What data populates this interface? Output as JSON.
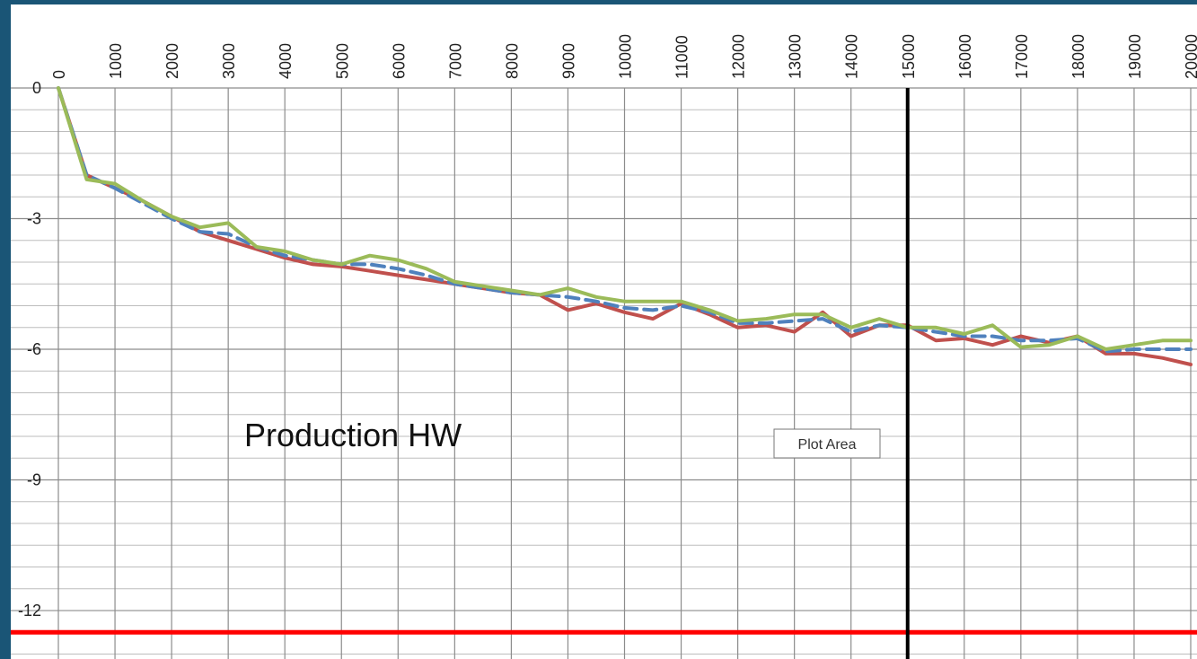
{
  "chart_data": {
    "type": "line",
    "x": [
      0,
      500,
      1000,
      1500,
      2000,
      2500,
      3000,
      3500,
      4000,
      4500,
      5000,
      5500,
      6000,
      6500,
      7000,
      7500,
      8000,
      8500,
      9000,
      9500,
      10000,
      10500,
      11000,
      11500,
      12000,
      12500,
      13000,
      13500,
      14000,
      14500,
      15000,
      15500,
      16000,
      16500,
      17000,
      17500,
      18000,
      18500,
      19000,
      19500,
      20000
    ],
    "series": [
      {
        "color": "#c0504d",
        "dash": false,
        "values": [
          0,
          -2.0,
          -2.3,
          -2.6,
          -2.95,
          -3.3,
          -3.5,
          -3.7,
          -3.9,
          -4.05,
          -4.1,
          -4.2,
          -4.3,
          -4.4,
          -4.5,
          -4.6,
          -4.7,
          -4.75,
          -5.1,
          -4.95,
          -5.15,
          -5.3,
          -4.95,
          -5.2,
          -5.5,
          -5.45,
          -5.6,
          -5.15,
          -5.7,
          -5.45,
          -5.45,
          -5.8,
          -5.75,
          -5.9,
          -5.7,
          -5.85,
          -5.7,
          -6.1,
          -6.1,
          -6.2,
          -6.35
        ]
      },
      {
        "color": "#4f81bd",
        "dash": true,
        "values": [
          0,
          -2.0,
          -2.3,
          -2.65,
          -3.0,
          -3.3,
          -3.35,
          -3.65,
          -3.85,
          -3.95,
          -4.05,
          -4.05,
          -4.15,
          -4.3,
          -4.5,
          -4.6,
          -4.7,
          -4.75,
          -4.8,
          -4.9,
          -5.05,
          -5.1,
          -5.0,
          -5.15,
          -5.4,
          -5.4,
          -5.35,
          -5.3,
          -5.6,
          -5.45,
          -5.5,
          -5.6,
          -5.7,
          -5.7,
          -5.8,
          -5.8,
          -5.75,
          -6.05,
          -6.0,
          -6.0,
          -6.0
        ]
      },
      {
        "color": "#9bbb59",
        "dash": false,
        "values": [
          0,
          -2.1,
          -2.2,
          -2.6,
          -2.95,
          -3.2,
          -3.1,
          -3.65,
          -3.75,
          -3.95,
          -4.05,
          -3.85,
          -3.95,
          -4.15,
          -4.45,
          -4.55,
          -4.65,
          -4.75,
          -4.6,
          -4.8,
          -4.9,
          -4.9,
          -4.9,
          -5.1,
          -5.35,
          -5.3,
          -5.2,
          -5.2,
          -5.5,
          -5.3,
          -5.5,
          -5.5,
          -5.65,
          -5.45,
          -5.95,
          -5.9,
          -5.7,
          -6.0,
          -5.9,
          -5.8,
          -5.8
        ]
      }
    ],
    "xlim": [
      0,
      20000
    ],
    "xticks": [
      0,
      1000,
      2000,
      3000,
      4000,
      5000,
      6000,
      7000,
      8000,
      9000,
      10000,
      11000,
      12000,
      13000,
      14000,
      15000,
      16000,
      17000,
      18000,
      19000,
      20000
    ],
    "ylim": [
      -13.1,
      0
    ],
    "yticks": [
      0,
      -3,
      -6,
      -9,
      -12
    ],
    "minor_grid_step": 0.5,
    "grid": true,
    "vlines": [
      {
        "x": 15000,
        "color": "#000000"
      }
    ],
    "hlines": [
      {
        "y": -12.5,
        "color": "#ff0000"
      }
    ],
    "annotations": [
      {
        "text": "Production HW"
      },
      {
        "text": "Plot Area"
      }
    ]
  }
}
